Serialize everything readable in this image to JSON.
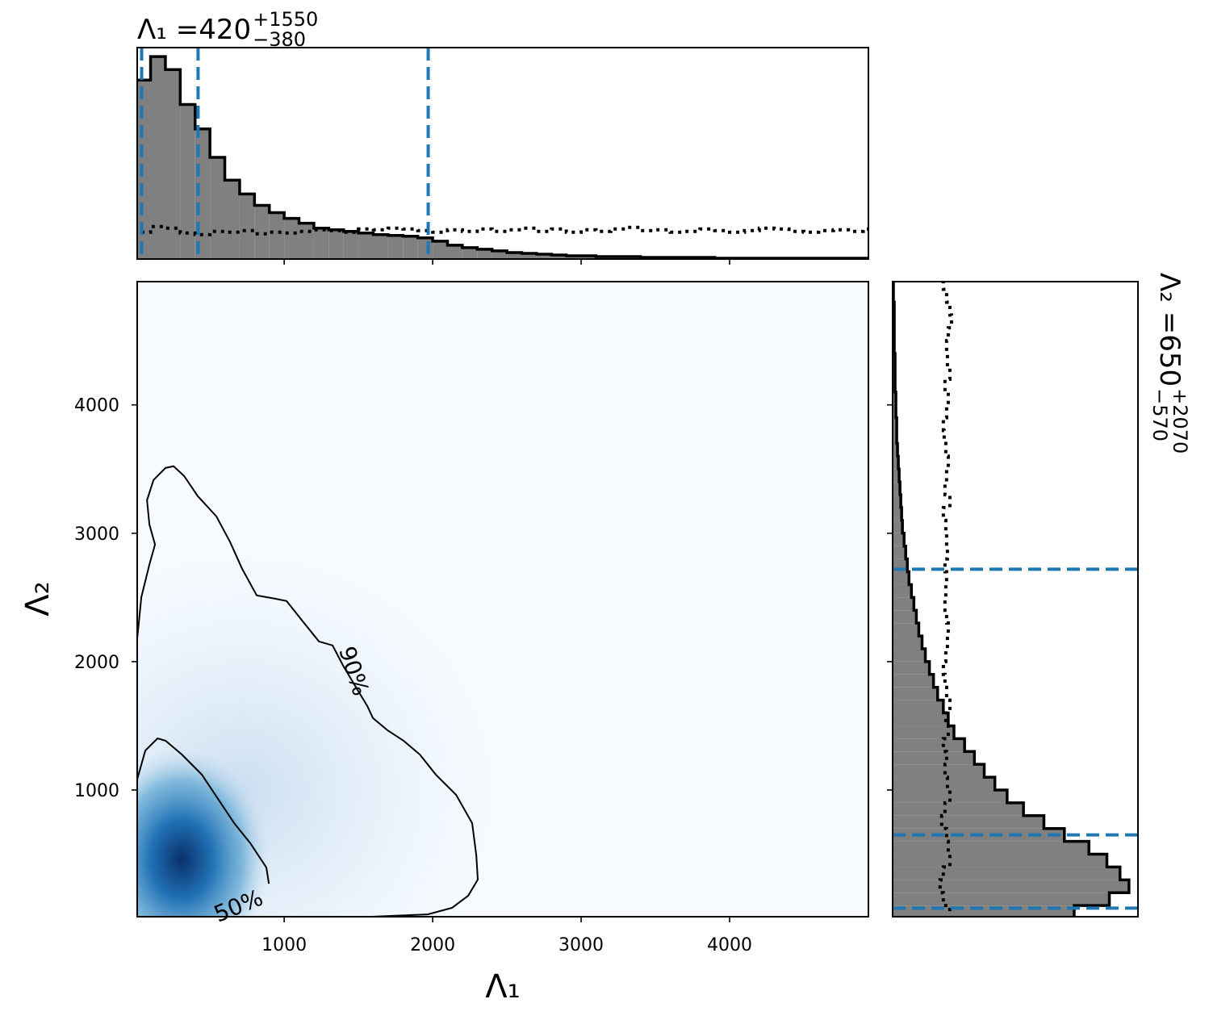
{
  "chart_data": [
    {
      "type": "histogram",
      "orientation": "vertical",
      "title": {
        "prefix": "Λ₁ = ",
        "median": 420,
        "upper": {
          "value": 1550,
          "label": "+1550"
        },
        "lower": {
          "value": -380,
          "label": "−380"
        }
      },
      "bins": [
        0,
        100,
        200,
        300,
        400,
        500,
        600,
        700,
        800,
        900,
        1000,
        1100,
        1200,
        1300,
        1400,
        1500,
        1600,
        1700,
        1800,
        1900,
        2000,
        2100,
        2200,
        2300,
        2400,
        2500,
        2600,
        2700,
        2800,
        2900,
        3000,
        3100,
        3200,
        3300,
        3400,
        3500,
        3600,
        3700,
        3800,
        3900,
        4000,
        4100,
        4200,
        4300,
        4400,
        4500,
        4600,
        4700,
        4800,
        4900,
        5000
      ],
      "counts": [
        220,
        249,
        233,
        190,
        160,
        125,
        97,
        80,
        66,
        57,
        50,
        44,
        38,
        36,
        34,
        32,
        30,
        29,
        28,
        26,
        22,
        17,
        14,
        12,
        10,
        8,
        7,
        6,
        5,
        4,
        4,
        3,
        3,
        3,
        2,
        2,
        2,
        2,
        2,
        1,
        1,
        1,
        1,
        1,
        1,
        1,
        1,
        1,
        1,
        1
      ],
      "prior": [
        33,
        40,
        38,
        32,
        30,
        34,
        33,
        35,
        31,
        33,
        32,
        34,
        36,
        35,
        33,
        37,
        36,
        38,
        37,
        35,
        33,
        36,
        34,
        37,
        34,
        36,
        38,
        34,
        37,
        33,
        36,
        34,
        37,
        39,
        35,
        36,
        33,
        34,
        37,
        35,
        33,
        35,
        38,
        37,
        34,
        33,
        35,
        36,
        34,
        37
      ],
      "xlim": [
        10,
        4935
      ],
      "ylim": [
        0,
        260
      ],
      "xticks": [
        1000,
        2000,
        3000,
        4000
      ],
      "color": "#808080",
      "line_color": "#1f77b4"
    },
    {
      "type": "contour",
      "x_label": "Λ₁",
      "y_label": "Λ₂",
      "xlim": [
        10,
        4935
      ],
      "ylim": [
        13,
        4960
      ],
      "xticks": [
        1000,
        2000,
        3000,
        4000
      ],
      "yticks": [
        1000,
        2000,
        3000,
        4000
      ],
      "contours": [
        {
          "label": "50%",
          "x": [
            11,
            65,
            147,
            201,
            310,
            446,
            554,
            663,
            772,
            880,
            897
          ],
          "y": [
            1088,
            1308,
            1402,
            1384,
            1277,
            1119,
            931,
            742,
            585,
            396,
            270
          ]
        },
        {
          "label": "90%",
          "x": [
            11,
            38,
            92,
            130,
            92,
            76,
            120,
            201,
            255,
            326,
            418,
            543,
            636,
            717,
            815,
            935,
            1016,
            1125,
            1234,
            1326,
            1397,
            1478,
            1560,
            1598,
            1696,
            1804,
            1913,
            2022,
            2158,
            2266,
            2294,
            2304,
            2239,
            2130,
            1967,
            1587
          ],
          "y": [
            2189,
            2503,
            2755,
            2912,
            3069,
            3258,
            3415,
            3509,
            3522,
            3446,
            3289,
            3132,
            2931,
            2723,
            2516,
            2491,
            2472,
            2314,
            2157,
            2126,
            1969,
            1811,
            1654,
            1560,
            1465,
            1384,
            1277,
            1119,
            962,
            742,
            491,
            302,
            176,
            82,
            31,
            13
          ]
        }
      ]
    },
    {
      "type": "histogram",
      "orientation": "horizontal",
      "title": {
        "prefix": "Λ₂ = ",
        "median": 650,
        "upper": {
          "value": 2070,
          "label": "+2070"
        },
        "lower": {
          "value": -570,
          "label": "−570"
        }
      },
      "bins": [
        0,
        100,
        200,
        300,
        400,
        500,
        600,
        700,
        800,
        900,
        1000,
        1100,
        1200,
        1300,
        1400,
        1500,
        1600,
        1700,
        1800,
        1900,
        2000,
        2100,
        2200,
        2300,
        2400,
        2500,
        2600,
        2700,
        2800,
        2900,
        3000,
        3100,
        3200,
        3300,
        3400,
        3500,
        3600,
        3700,
        3800,
        3900,
        4000,
        4100,
        4200,
        4300,
        4400,
        4500,
        4600,
        4700,
        4800,
        4900,
        5000
      ],
      "counts": [
        222,
        265,
        289,
        278,
        262,
        240,
        210,
        185,
        160,
        140,
        125,
        112,
        100,
        88,
        75,
        68,
        62,
        55,
        50,
        45,
        40,
        36,
        32,
        29,
        26,
        23,
        20,
        18,
        16,
        14,
        12,
        11,
        10,
        9,
        8,
        7,
        6,
        5,
        5,
        4,
        4,
        3,
        3,
        3,
        2,
        2,
        2,
        2,
        1,
        1
      ],
      "prior": [
        70,
        62,
        58,
        62,
        70,
        68,
        66,
        60,
        64,
        70,
        67,
        64,
        66,
        62,
        68,
        65,
        70,
        66,
        64,
        62,
        65,
        67,
        68,
        66,
        64,
        65,
        66,
        64,
        67,
        66,
        65,
        62,
        70,
        64,
        66,
        68,
        65,
        63,
        62,
        66,
        68,
        64,
        70,
        67,
        66,
        68,
        72,
        70,
        66,
        62
      ],
      "xlim": [
        0,
        300
      ],
      "ylim": [
        13,
        4960
      ],
      "yticks": [
        1000,
        2000,
        3000,
        4000
      ],
      "color": "#808080",
      "line_color": "#1f77b4"
    }
  ]
}
